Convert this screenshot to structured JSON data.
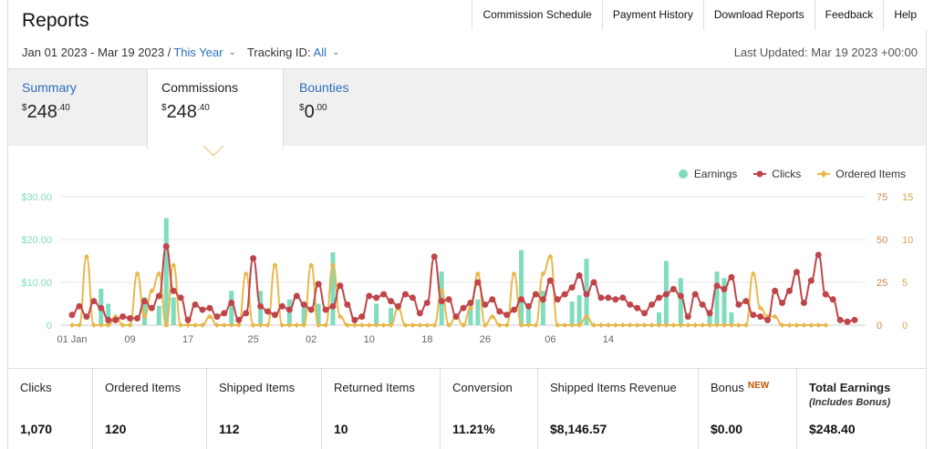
{
  "header": {
    "title": "Reports",
    "nav": [
      "Commission Schedule",
      "Payment History",
      "Download Reports",
      "Feedback",
      "Help"
    ]
  },
  "filters": {
    "date_range": "Jan 01 2023 - Mar 19 2023 /",
    "period": "This Year",
    "tracking_label": "Tracking ID:",
    "tracking_value": "All",
    "last_updated": "Last Updated: Mar 19 2023 +00:00"
  },
  "tabs": [
    {
      "label": "Summary",
      "currency": "$",
      "whole": "248",
      "cents": ".40"
    },
    {
      "label": "Commissions",
      "currency": "$",
      "whole": "248",
      "cents": ".40"
    },
    {
      "label": "Bounties",
      "currency": "$",
      "whole": "0",
      "cents": ".00"
    }
  ],
  "legend": [
    "Earnings",
    "Clicks",
    "Ordered Items"
  ],
  "colors": {
    "earnings": "#7fdcbd",
    "clicks": "#c0454a",
    "ordered": "#e8b84a",
    "link": "#2a6ebb"
  },
  "chart_data": {
    "type": "bar",
    "x_tick_labels": [
      "01 Jan",
      "09",
      "17",
      "25",
      "02",
      "10",
      "18",
      "26",
      "06",
      "14"
    ],
    "y_left_ticks": [
      "0",
      "$10.00",
      "$20.00",
      "$30.00"
    ],
    "y_clicks_ticks": [
      "0",
      "25",
      "50",
      "75"
    ],
    "y_items_ticks": [
      "0",
      "5",
      "10",
      "15"
    ],
    "ylim_earnings": [
      0,
      30
    ],
    "ylim_clicks": [
      0,
      75
    ],
    "ylim_items": [
      0,
      15
    ],
    "days": 78,
    "series": [
      {
        "name": "Earnings",
        "axis": "left",
        "values": [
          0,
          0,
          0,
          0,
          8.5,
          5,
          0,
          0,
          0,
          0,
          6.5,
          0,
          4.5,
          25,
          6.5,
          0,
          0,
          0,
          0,
          0,
          0,
          0,
          8,
          0,
          0,
          0,
          8,
          0,
          0,
          0,
          6,
          0,
          5,
          0,
          5,
          0,
          17,
          0,
          0,
          0,
          0,
          0,
          5,
          0,
          4,
          0,
          0,
          0,
          0,
          0,
          0,
          12.5,
          0,
          0,
          0,
          4.5,
          6,
          0,
          0,
          0,
          0,
          0,
          17.5,
          4.5,
          0,
          8,
          0,
          0,
          0,
          5.5,
          7,
          15.5,
          0,
          0,
          0,
          0,
          0,
          0,
          0,
          0,
          0,
          3,
          15,
          0,
          11,
          0,
          0,
          0,
          3,
          12.5,
          11,
          3,
          0,
          0,
          0,
          0
        ]
      },
      {
        "name": "Clicks",
        "axis": "clicks",
        "values": [
          6,
          11,
          5,
          14,
          10,
          3,
          3,
          5,
          4,
          4,
          14,
          10,
          17,
          46,
          20,
          16,
          3,
          12,
          9,
          10,
          5,
          7,
          13,
          3,
          7,
          39,
          11,
          8,
          6,
          11,
          9,
          17,
          12,
          9,
          24,
          9,
          11,
          23,
          12,
          3,
          5,
          17,
          16,
          18,
          14,
          11,
          18,
          16,
          7,
          13,
          40,
          14,
          15,
          5,
          10,
          13,
          25,
          12,
          15,
          8,
          6,
          9,
          15,
          11,
          18,
          15,
          26,
          15,
          18,
          22,
          29,
          18,
          25,
          16,
          16,
          15,
          16,
          12,
          10,
          7,
          12,
          16,
          18,
          21,
          17,
          5,
          18,
          12,
          7,
          23,
          21,
          28,
          12,
          14,
          6,
          5,
          3,
          20,
          13,
          20,
          31,
          13,
          26,
          41,
          18,
          15,
          3,
          2,
          3
        ]
      },
      {
        "name": "Ordered Items",
        "axis": "items",
        "values": [
          0,
          0,
          8,
          0,
          0,
          0,
          1,
          0,
          0,
          6,
          1,
          4,
          6,
          0,
          7,
          0,
          0,
          0,
          0,
          1,
          0,
          0,
          0,
          0,
          6,
          0,
          0,
          0,
          7,
          0,
          0,
          0,
          0,
          7,
          0,
          0,
          7,
          1,
          0,
          0,
          0,
          0,
          0,
          0,
          0,
          2,
          0,
          0,
          0,
          0,
          0,
          4,
          0,
          1,
          0,
          2,
          6,
          0,
          1,
          0,
          0,
          6,
          0,
          0,
          0,
          6,
          8,
          0,
          0,
          0,
          0,
          1,
          0,
          0,
          0,
          0,
          0,
          0,
          0,
          0,
          0,
          0,
          0,
          0,
          0,
          0,
          0,
          0,
          0,
          0,
          0,
          0,
          0,
          0,
          6,
          2,
          1,
          1,
          0,
          0,
          0,
          0,
          0,
          0,
          0
        ]
      }
    ]
  },
  "stats": [
    {
      "label": "Clicks",
      "value": "1,070"
    },
    {
      "label": "Ordered Items",
      "value": "120"
    },
    {
      "label": "Shipped Items",
      "value": "112"
    },
    {
      "label": "Returned Items",
      "value": "10"
    },
    {
      "label": "Conversion",
      "value": "11.21%"
    },
    {
      "label": "Shipped Items Revenue",
      "value": "$8,146.57"
    },
    {
      "label": "Bonus",
      "badge": "NEW",
      "value": "$0.00"
    },
    {
      "label": "Total Earnings",
      "sub": "(Includes Bonus)",
      "value": "$248.40"
    }
  ]
}
